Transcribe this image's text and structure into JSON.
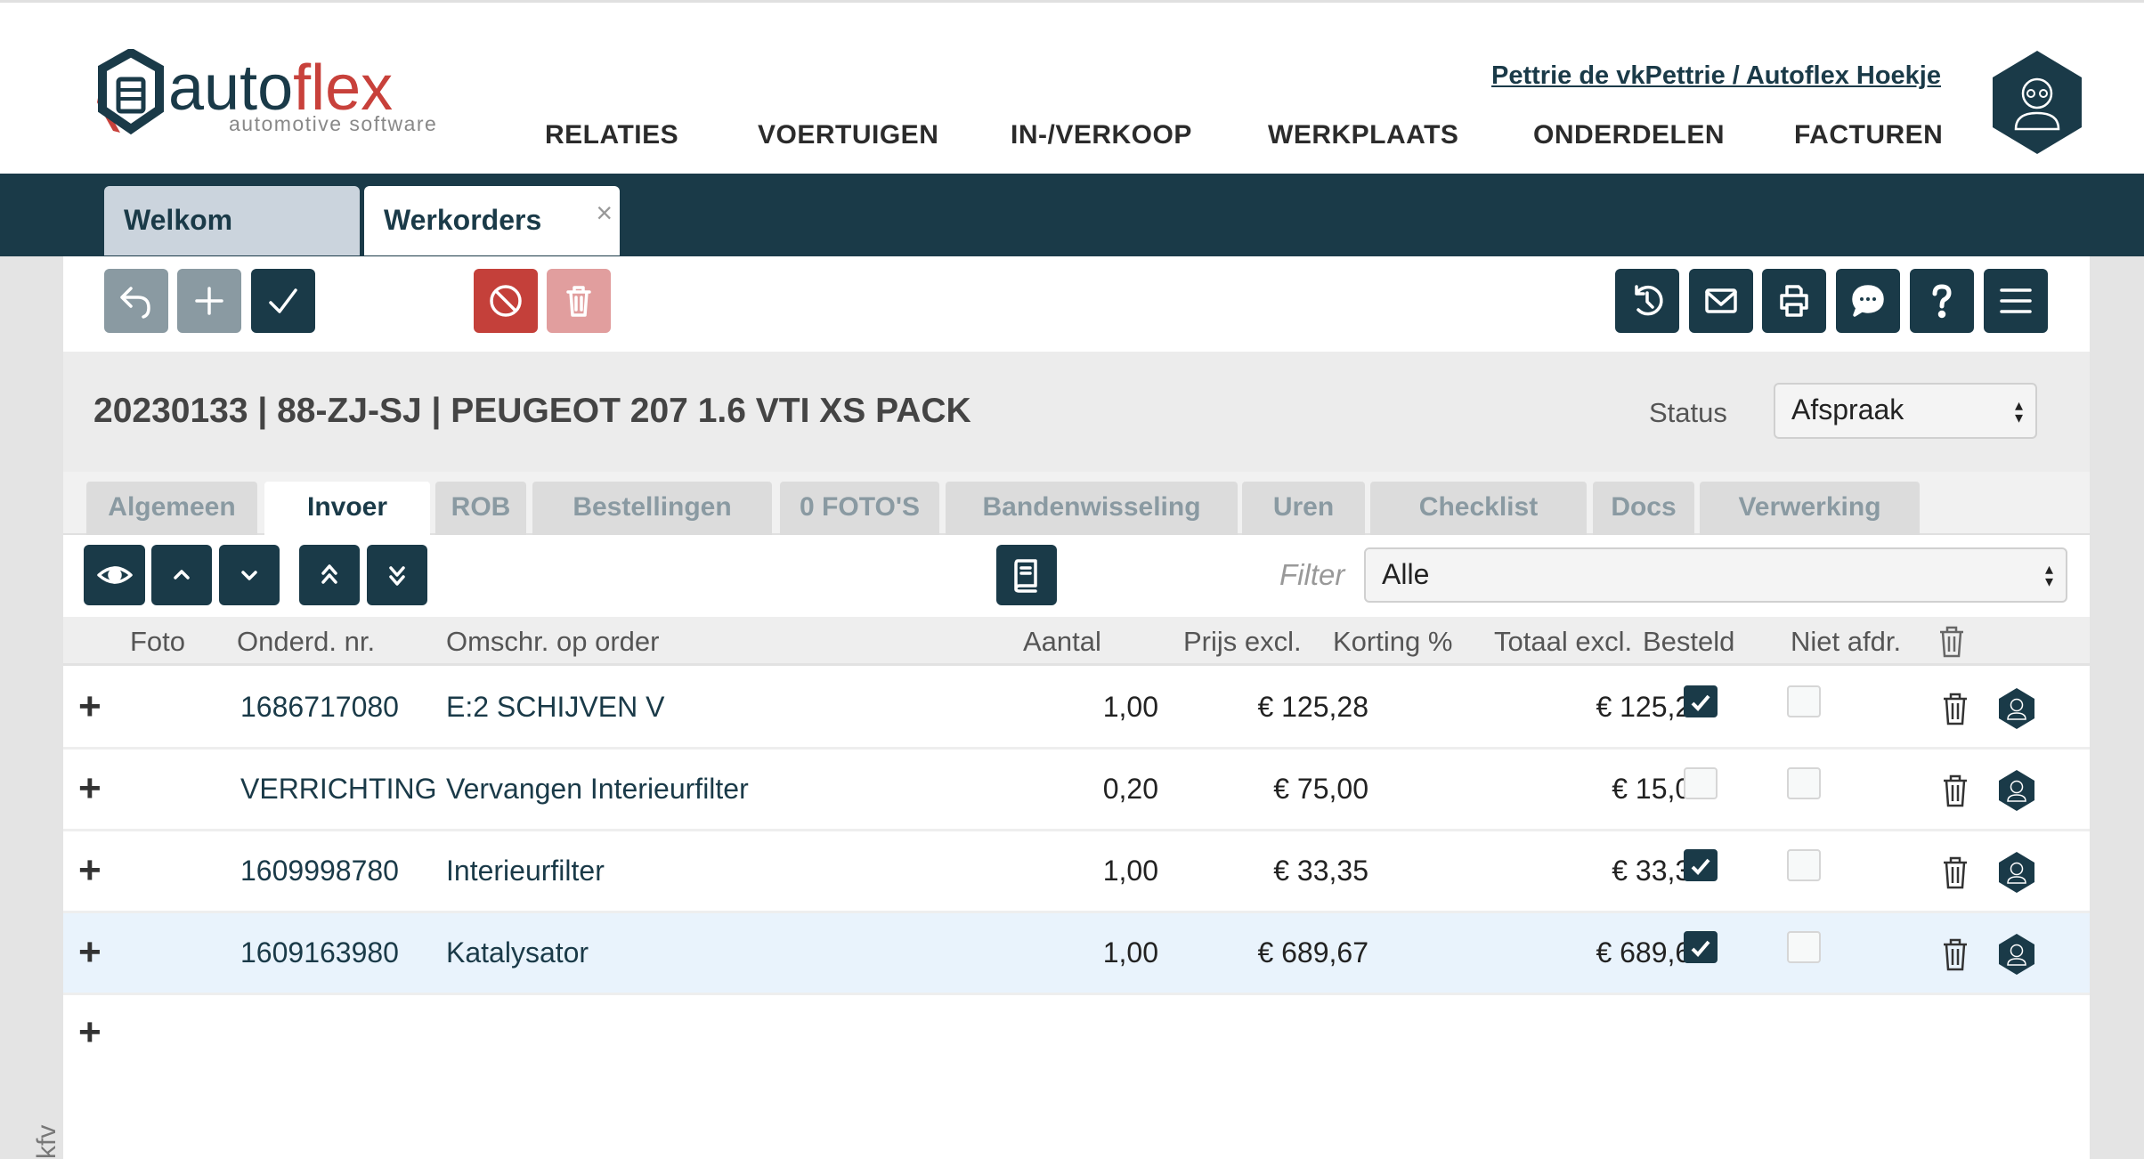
{
  "header": {
    "logo_text_main": "autoflex",
    "logo_text_sub": "automotive software",
    "user_link": "Pettrie de vkPettrie / Autoflex Hoekje",
    "nav": [
      "RELATIES",
      "VOERTUIGEN",
      "IN-/VERKOOP",
      "WERKPLAATS",
      "ONDERDELEN",
      "FACTUREN"
    ]
  },
  "app_tabs": [
    {
      "label": "Welkom",
      "active": false
    },
    {
      "label": "Werkorders",
      "active": true,
      "close": "×"
    }
  ],
  "toolbar": {
    "left": [
      "undo-icon",
      "plus-icon",
      "check-icon",
      "cancel-icon",
      "trash-icon"
    ],
    "right": [
      "history-icon",
      "mail-icon",
      "print-icon",
      "chat-icon",
      "help-icon",
      "menu-icon"
    ]
  },
  "order": {
    "title": "20230133 | 88-ZJ-SJ | PEUGEOT 207 1.6 VTI XS PACK",
    "status_label": "Status",
    "status_value": "Afspraak"
  },
  "sub_tabs": [
    {
      "label": "Algemeen"
    },
    {
      "label": "Invoer",
      "active": true
    },
    {
      "label": "ROB"
    },
    {
      "label": "Bestellingen"
    },
    {
      "label": "0 FOTO'S"
    },
    {
      "label": "Bandenwisseling"
    },
    {
      "label": "Uren"
    },
    {
      "label": "Checklist"
    },
    {
      "label": "Docs"
    },
    {
      "label": "Verwerking"
    }
  ],
  "filter": {
    "label": "Filter",
    "value": "Alle"
  },
  "table": {
    "columns": [
      "Foto",
      "Onderd. nr.",
      "Omschr. op order",
      "Aantal",
      "Prijs excl.",
      "Korting %",
      "Totaal excl.",
      "Besteld",
      "Niet afdr."
    ],
    "rows": [
      {
        "part": "1686717080",
        "desc": "E:2 SCHIJVEN V",
        "qty": "1,00",
        "price": "€ 125,28",
        "discount": "",
        "total": "€ 125,28",
        "ordered": true,
        "not_printed": false
      },
      {
        "part": "VERRICHTING",
        "desc": "Vervangen Interieurfilter",
        "qty": "0,20",
        "price": "€ 75,00",
        "discount": "",
        "total": "€ 15,00",
        "ordered": false,
        "not_printed": false
      },
      {
        "part": "1609998780",
        "desc": "Interieurfilter",
        "qty": "1,00",
        "price": "€ 33,35",
        "discount": "",
        "total": "€ 33,35",
        "ordered": true,
        "not_printed": false
      },
      {
        "part": "1609163980",
        "desc": "Katalysator",
        "qty": "1,00",
        "price": "€ 689,67",
        "discount": "",
        "total": "€ 689,67",
        "ordered": true,
        "not_printed": false,
        "highlighted": true
      }
    ]
  },
  "side_label": "kfv",
  "colors": {
    "primary": "#1a3a48",
    "danger": "#c4403a",
    "danger_light": "#e19e9e",
    "muted_button": "#8a9aa2",
    "accent_logo": "#c8413b",
    "row_highlight": "#e9f3fc"
  }
}
